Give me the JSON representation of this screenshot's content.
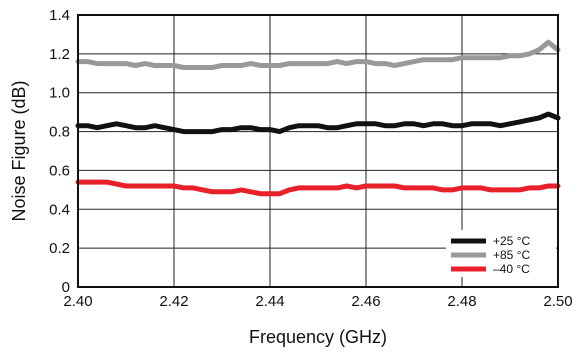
{
  "chart_data": {
    "type": "line",
    "title": "",
    "xlabel": "Frequency (GHz)",
    "ylabel": "Noise Figure (dB)",
    "xlim": [
      2.4,
      2.5
    ],
    "ylim": [
      0,
      1.4
    ],
    "x_ticks": [
      "2.40",
      "2.42",
      "2.44",
      "2.46",
      "2.48",
      "2.50"
    ],
    "y_ticks": [
      "0",
      "0.2",
      "0.4",
      "0.6",
      "0.8",
      "1.0",
      "1.2",
      "1.4"
    ],
    "grid": true,
    "legend_position": "bottom-right",
    "series": [
      {
        "name": "+25 °C",
        "color": "#111111",
        "x": [
          2.4,
          2.402,
          2.404,
          2.406,
          2.408,
          2.41,
          2.412,
          2.414,
          2.416,
          2.418,
          2.42,
          2.422,
          2.424,
          2.426,
          2.428,
          2.43,
          2.432,
          2.434,
          2.436,
          2.438,
          2.44,
          2.442,
          2.444,
          2.446,
          2.448,
          2.45,
          2.452,
          2.454,
          2.456,
          2.458,
          2.46,
          2.462,
          2.464,
          2.466,
          2.468,
          2.47,
          2.472,
          2.474,
          2.476,
          2.478,
          2.48,
          2.482,
          2.484,
          2.486,
          2.488,
          2.49,
          2.492,
          2.494,
          2.496,
          2.498,
          2.5
        ],
        "y": [
          0.83,
          0.83,
          0.82,
          0.83,
          0.84,
          0.83,
          0.82,
          0.82,
          0.83,
          0.82,
          0.81,
          0.8,
          0.8,
          0.8,
          0.8,
          0.81,
          0.81,
          0.82,
          0.82,
          0.81,
          0.81,
          0.8,
          0.82,
          0.83,
          0.83,
          0.83,
          0.82,
          0.82,
          0.83,
          0.84,
          0.84,
          0.84,
          0.83,
          0.83,
          0.84,
          0.84,
          0.83,
          0.84,
          0.84,
          0.83,
          0.83,
          0.84,
          0.84,
          0.84,
          0.83,
          0.84,
          0.85,
          0.86,
          0.87,
          0.89,
          0.87
        ]
      },
      {
        "name": "+85 °C",
        "color": "#999999",
        "x": [
          2.4,
          2.402,
          2.404,
          2.406,
          2.408,
          2.41,
          2.412,
          2.414,
          2.416,
          2.418,
          2.42,
          2.422,
          2.424,
          2.426,
          2.428,
          2.43,
          2.432,
          2.434,
          2.436,
          2.438,
          2.44,
          2.442,
          2.444,
          2.446,
          2.448,
          2.45,
          2.452,
          2.454,
          2.456,
          2.458,
          2.46,
          2.462,
          2.464,
          2.466,
          2.468,
          2.47,
          2.472,
          2.474,
          2.476,
          2.478,
          2.48,
          2.482,
          2.484,
          2.486,
          2.488,
          2.49,
          2.492,
          2.494,
          2.496,
          2.498,
          2.5
        ],
        "y": [
          1.16,
          1.16,
          1.15,
          1.15,
          1.15,
          1.15,
          1.14,
          1.15,
          1.14,
          1.14,
          1.14,
          1.13,
          1.13,
          1.13,
          1.13,
          1.14,
          1.14,
          1.14,
          1.15,
          1.14,
          1.14,
          1.14,
          1.15,
          1.15,
          1.15,
          1.15,
          1.15,
          1.16,
          1.15,
          1.16,
          1.16,
          1.15,
          1.15,
          1.14,
          1.15,
          1.16,
          1.17,
          1.17,
          1.17,
          1.17,
          1.18,
          1.18,
          1.18,
          1.18,
          1.18,
          1.19,
          1.19,
          1.2,
          1.22,
          1.26,
          1.22
        ]
      },
      {
        "name": "–40 °C",
        "color": "#e8202a",
        "x": [
          2.4,
          2.402,
          2.404,
          2.406,
          2.408,
          2.41,
          2.412,
          2.414,
          2.416,
          2.418,
          2.42,
          2.422,
          2.424,
          2.426,
          2.428,
          2.43,
          2.432,
          2.434,
          2.436,
          2.438,
          2.44,
          2.442,
          2.444,
          2.446,
          2.448,
          2.45,
          2.452,
          2.454,
          2.456,
          2.458,
          2.46,
          2.462,
          2.464,
          2.466,
          2.468,
          2.47,
          2.472,
          2.474,
          2.476,
          2.478,
          2.48,
          2.482,
          2.484,
          2.486,
          2.488,
          2.49,
          2.492,
          2.494,
          2.496,
          2.498,
          2.5
        ],
        "y": [
          0.54,
          0.54,
          0.54,
          0.54,
          0.53,
          0.52,
          0.52,
          0.52,
          0.52,
          0.52,
          0.52,
          0.51,
          0.51,
          0.5,
          0.49,
          0.49,
          0.49,
          0.5,
          0.49,
          0.48,
          0.48,
          0.48,
          0.5,
          0.51,
          0.51,
          0.51,
          0.51,
          0.51,
          0.52,
          0.51,
          0.52,
          0.52,
          0.52,
          0.52,
          0.51,
          0.51,
          0.51,
          0.51,
          0.5,
          0.5,
          0.51,
          0.51,
          0.51,
          0.5,
          0.5,
          0.5,
          0.5,
          0.51,
          0.51,
          0.52,
          0.52
        ]
      }
    ]
  }
}
